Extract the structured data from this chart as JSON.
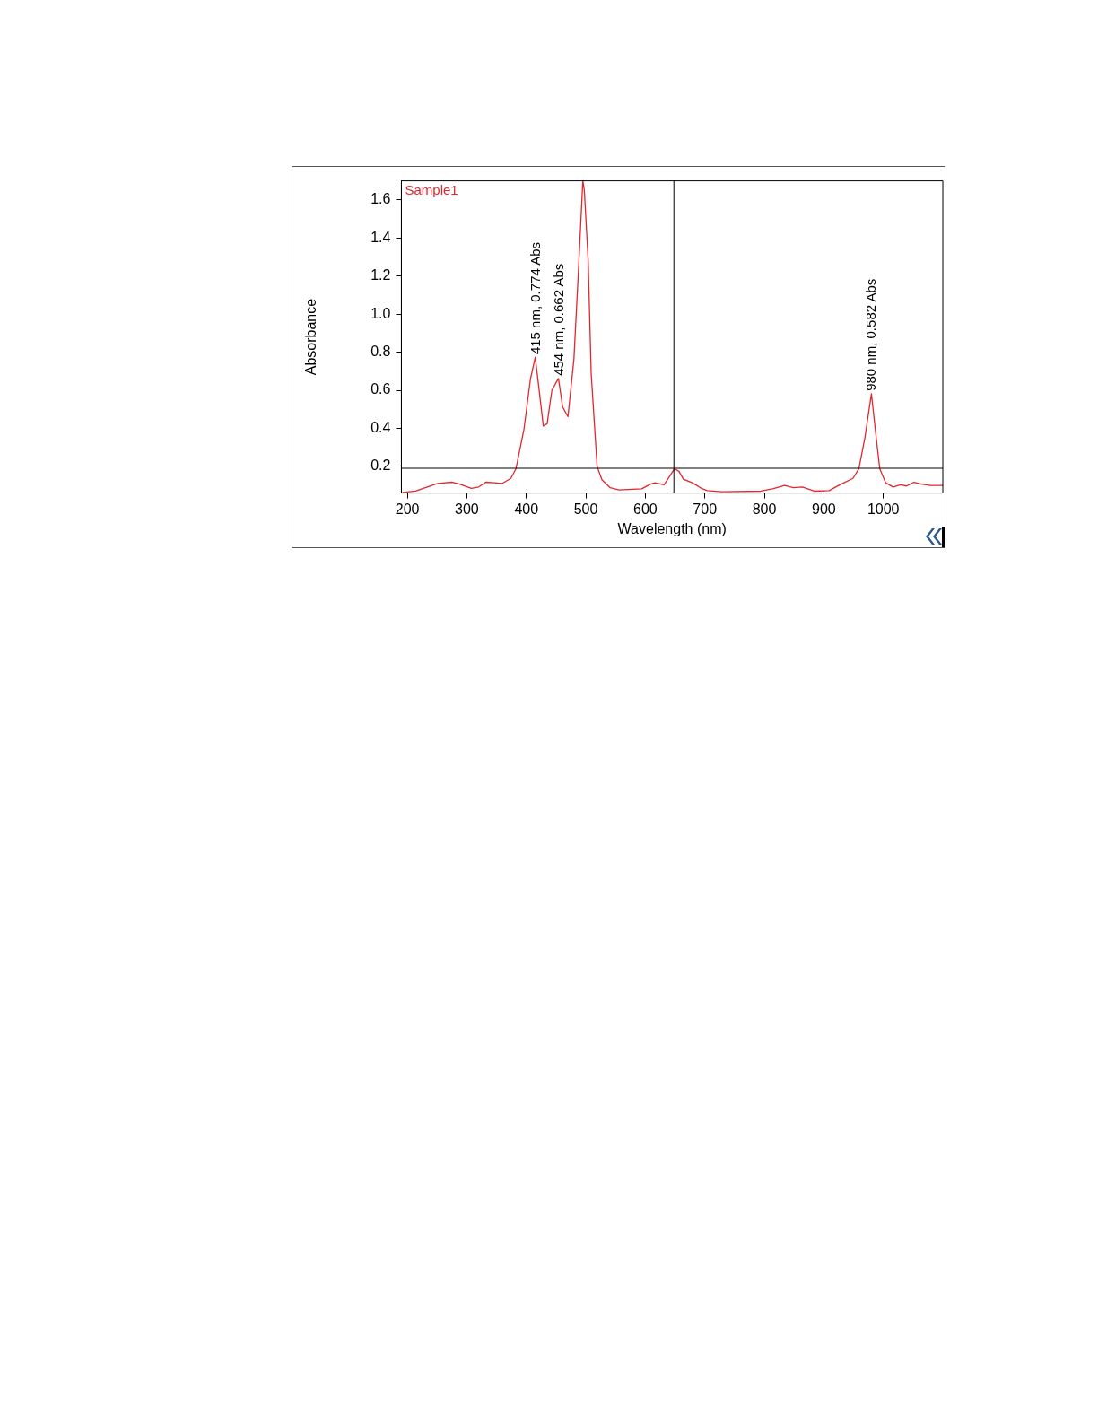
{
  "chart_data": {
    "type": "line",
    "xlabel": "Wavelength (nm)",
    "ylabel": "Absorbance",
    "xlim": [
      190,
      1100
    ],
    "xticks": [
      200,
      300,
      400,
      500,
      600,
      700,
      800,
      900,
      1000
    ],
    "ylim": [
      0.06,
      1.7
    ],
    "yticks": [
      0.2,
      0.4,
      0.6,
      0.8,
      {
        "value": 1,
        "label": "1.0"
      },
      1.2,
      1.4,
      1.6
    ],
    "grid": false,
    "legend": "top left",
    "marker": "none",
    "line_style": "solid",
    "series": [
      {
        "name": "Sample1",
        "color": "#e3262e",
        "x": [
          191.6,
          213.8,
          233.5,
          251,
          275.5,
          287.8,
          307.6,
          320,
          332,
          347,
          359,
          374,
          382.6,
          396,
          407,
          415,
          421,
          428.5,
          435,
          443,
          454,
          461,
          470,
          480,
          487,
          495,
          497.5,
          504,
          509,
          519,
          527,
          541,
          556,
          594,
          609,
          616,
          631.5,
          640,
          649,
          656.5,
          664,
          679,
          694,
          704,
          729,
          794,
          814,
          834,
          849,
          864,
          884,
          909,
          929,
          949,
          959,
          969,
          980,
          986.5,
          994,
          1004,
          1016.5,
          1029,
          1039,
          1051.5,
          1064,
          1079,
          1100
        ],
        "values": [
          0.063,
          0.07,
          0.092,
          0.111,
          0.117,
          0.107,
          0.085,
          0.092,
          0.117,
          0.114,
          0.11,
          0.137,
          0.188,
          0.395,
          0.66,
          0.774,
          0.616,
          0.412,
          0.424,
          0.6,
          0.662,
          0.513,
          0.461,
          0.763,
          1.19,
          1.7,
          1.65,
          1.28,
          0.69,
          0.2,
          0.13,
          0.088,
          0.076,
          0.082,
          0.107,
          0.114,
          0.103,
          0.144,
          0.188,
          0.174,
          0.133,
          0.114,
          0.085,
          0.073,
          0.067,
          0.07,
          0.082,
          0.1,
          0.088,
          0.092,
          0.07,
          0.073,
          0.107,
          0.137,
          0.188,
          0.35,
          0.582,
          0.394,
          0.188,
          0.114,
          0.092,
          0.103,
          0.097,
          0.117,
          0.107,
          0.1,
          0.1
        ]
      }
    ],
    "ref_lines": [
      {
        "axis": "y",
        "value": 0.19,
        "color": "#000000"
      },
      {
        "axis": "x",
        "value": 648,
        "color": "#000000"
      }
    ],
    "annotations": [
      {
        "text": "415 nm, 0.774 Abs",
        "x": 415,
        "y": 0.774
      },
      {
        "text": "454 nm, 0.662 Abs",
        "x": 454,
        "y": 0.662
      },
      {
        "text": "980 nm, 0.582 Abs",
        "x": 980,
        "y": 0.582
      }
    ]
  }
}
